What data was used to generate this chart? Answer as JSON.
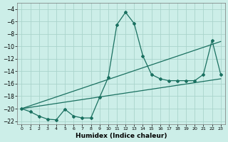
{
  "xlabel": "Humidex (Indice chaleur)",
  "background_color": "#cceee8",
  "grid_color": "#aad4cc",
  "line_color": "#1a7060",
  "xlim": [
    -0.5,
    23.5
  ],
  "ylim": [
    -22.5,
    -3.0
  ],
  "yticks": [
    -4,
    -6,
    -8,
    -10,
    -12,
    -14,
    -16,
    -18,
    -20,
    -22
  ],
  "xtick_labels": [
    "0",
    "1",
    "2",
    "3",
    "4",
    "5",
    "6",
    "7",
    "8",
    "9",
    "10",
    "11",
    "12",
    "13",
    "14",
    "15",
    "16",
    "17",
    "18",
    "19",
    "20",
    "21",
    "22",
    "23"
  ],
  "curve1_x": [
    0,
    1,
    2,
    3,
    4,
    5,
    6,
    7,
    8,
    9,
    10,
    11,
    12,
    13,
    14,
    15,
    16,
    17,
    18,
    19,
    20,
    21,
    22,
    23
  ],
  "curve1_y": [
    -20.0,
    -20.5,
    -21.2,
    -21.7,
    -21.8,
    -20.1,
    -21.2,
    -21.5,
    -21.5,
    -18.2,
    -15.0,
    -6.5,
    -4.5,
    -6.3,
    -11.5,
    -14.5,
    -15.2,
    -15.5,
    -15.5,
    -15.5,
    -15.5,
    -14.5,
    -9.0,
    -14.5
  ],
  "line2_x": [
    0,
    23
  ],
  "line2_y": [
    -20.0,
    -9.2
  ],
  "line3_x": [
    0,
    23
  ],
  "line3_y": [
    -20.0,
    -15.2
  ]
}
